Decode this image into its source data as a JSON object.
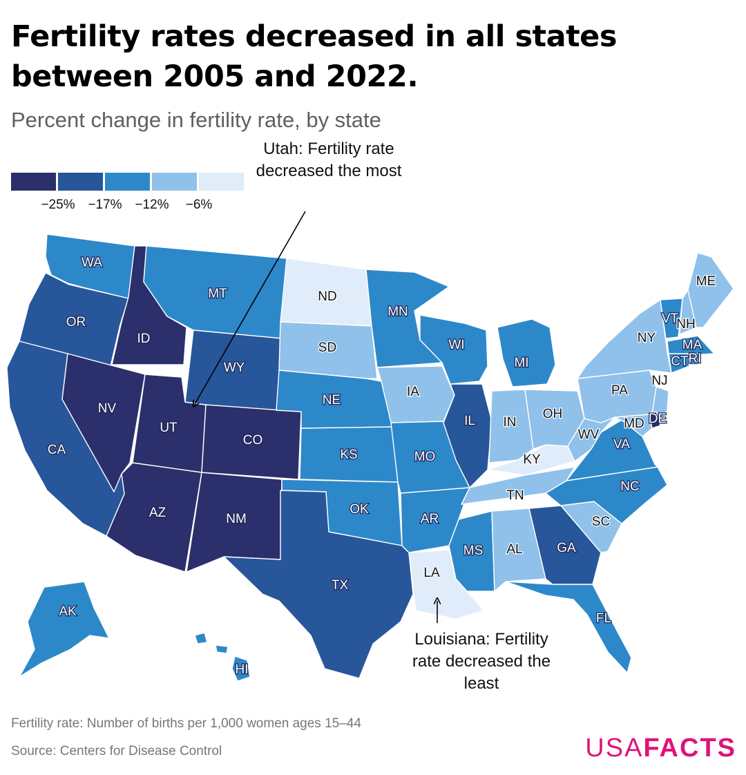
{
  "title": "Fertility rates decreased in all states between 2005 and 2022.",
  "subtitle": "Percent change in fertility rate, by state",
  "legend": {
    "colors": [
      "#2b2f6b",
      "#27569a",
      "#2d88c9",
      "#8fc1ea",
      "#e0ecfa"
    ],
    "labels": [
      "−25%",
      "−17%",
      "−12%",
      "−6%"
    ]
  },
  "annotations": {
    "utah": "Utah: Fertility rate decreased the most",
    "louisiana": "Louisiana: Fertility rate decreased the least"
  },
  "footnote": "Fertility rate: Number of births per 1,000 women ages 15–44",
  "source": "Source: Centers for Disease Control",
  "logo": {
    "part1": "USA",
    "part2": "FACTS"
  },
  "map_data": {
    "states": [
      {
        "abbr": "WA",
        "bin": 2
      },
      {
        "abbr": "OR",
        "bin": 1
      },
      {
        "abbr": "CA",
        "bin": 1
      },
      {
        "abbr": "ID",
        "bin": 0
      },
      {
        "abbr": "NV",
        "bin": 0
      },
      {
        "abbr": "UT",
        "bin": 0
      },
      {
        "abbr": "AZ",
        "bin": 0
      },
      {
        "abbr": "MT",
        "bin": 2
      },
      {
        "abbr": "WY",
        "bin": 1
      },
      {
        "abbr": "CO",
        "bin": 0
      },
      {
        "abbr": "NM",
        "bin": 0
      },
      {
        "abbr": "ND",
        "bin": 4
      },
      {
        "abbr": "SD",
        "bin": 3
      },
      {
        "abbr": "NE",
        "bin": 2
      },
      {
        "abbr": "KS",
        "bin": 2
      },
      {
        "abbr": "OK",
        "bin": 2
      },
      {
        "abbr": "TX",
        "bin": 1
      },
      {
        "abbr": "MN",
        "bin": 2
      },
      {
        "abbr": "IA",
        "bin": 3
      },
      {
        "abbr": "MO",
        "bin": 2
      },
      {
        "abbr": "AR",
        "bin": 2
      },
      {
        "abbr": "LA",
        "bin": 4
      },
      {
        "abbr": "WI",
        "bin": 2
      },
      {
        "abbr": "IL",
        "bin": 1
      },
      {
        "abbr": "MI",
        "bin": 2
      },
      {
        "abbr": "IN",
        "bin": 3
      },
      {
        "abbr": "OH",
        "bin": 3
      },
      {
        "abbr": "KY",
        "bin": 4
      },
      {
        "abbr": "TN",
        "bin": 3
      },
      {
        "abbr": "MS",
        "bin": 2
      },
      {
        "abbr": "AL",
        "bin": 3
      },
      {
        "abbr": "GA",
        "bin": 1
      },
      {
        "abbr": "FL",
        "bin": 2
      },
      {
        "abbr": "SC",
        "bin": 3
      },
      {
        "abbr": "NC",
        "bin": 2
      },
      {
        "abbr": "VA",
        "bin": 2
      },
      {
        "abbr": "WV",
        "bin": 3
      },
      {
        "abbr": "PA",
        "bin": 3
      },
      {
        "abbr": "NY",
        "bin": 3
      },
      {
        "abbr": "VT",
        "bin": 2
      },
      {
        "abbr": "NH",
        "bin": 3
      },
      {
        "abbr": "ME",
        "bin": 3
      },
      {
        "abbr": "MA",
        "bin": 2
      },
      {
        "abbr": "RI",
        "bin": 2
      },
      {
        "abbr": "CT",
        "bin": 2
      },
      {
        "abbr": "NJ",
        "bin": 3
      },
      {
        "abbr": "DE",
        "bin": 0
      },
      {
        "abbr": "MD",
        "bin": 3
      },
      {
        "abbr": "AK",
        "bin": 2
      },
      {
        "abbr": "HI",
        "bin": 2
      }
    ]
  }
}
